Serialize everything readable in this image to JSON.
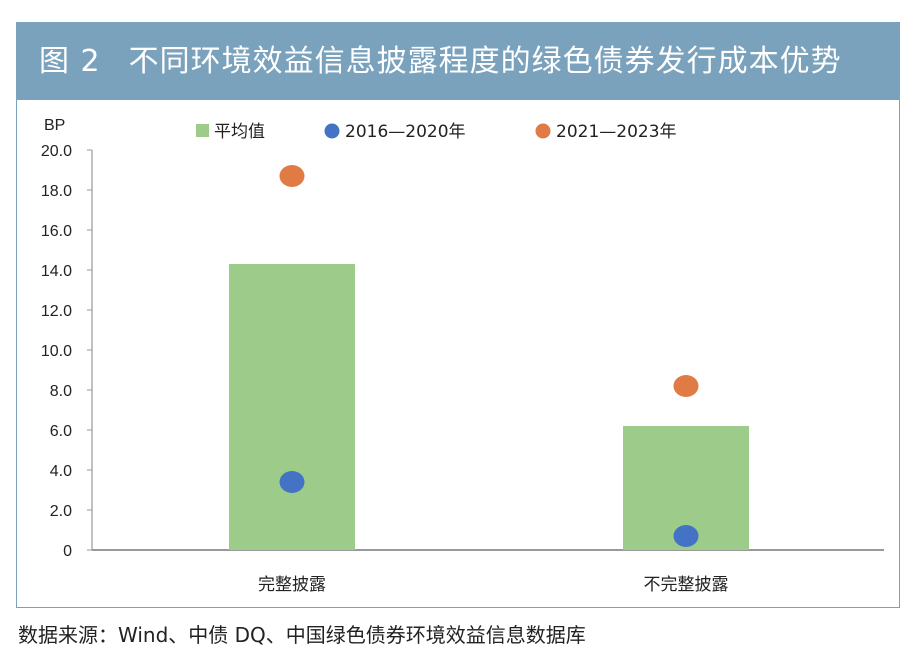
{
  "figure": {
    "number": "图 2",
    "title": "不同环境效益信息披露程度的绿色债券发行成本优势"
  },
  "source_note": "数据来源：Wind、中债 DQ、中国绿色债券环境效益信息数据库",
  "colors": {
    "title_bg": "#7aa2bd",
    "bar": "#9dcb8a",
    "series_2016_2020": "#4472c4",
    "series_2021_2023": "#e07b45",
    "axis": "#999999"
  },
  "chart_data": {
    "type": "bar",
    "title": "不同环境效益信息披露程度的绿色债券发行成本优势",
    "ylabel": "BP",
    "xlabel": "",
    "ylim": [
      0,
      20
    ],
    "yticks": [
      "20.0",
      "18.0",
      "16.0",
      "14.0",
      "12.0",
      "10.0",
      "8.0",
      "6.0",
      "4.0",
      "2.0",
      "0"
    ],
    "categories": [
      "完整披露",
      "不完整披露"
    ],
    "series": [
      {
        "name": "平均值",
        "kind": "bar",
        "values": [
          14.3,
          6.2
        ]
      },
      {
        "name": "2016—2020年",
        "kind": "scatter",
        "values": [
          3.4,
          0.7
        ]
      },
      {
        "name": "2021—2023年",
        "kind": "scatter",
        "values": [
          18.7,
          8.2
        ]
      }
    ],
    "legend_position": "top"
  }
}
